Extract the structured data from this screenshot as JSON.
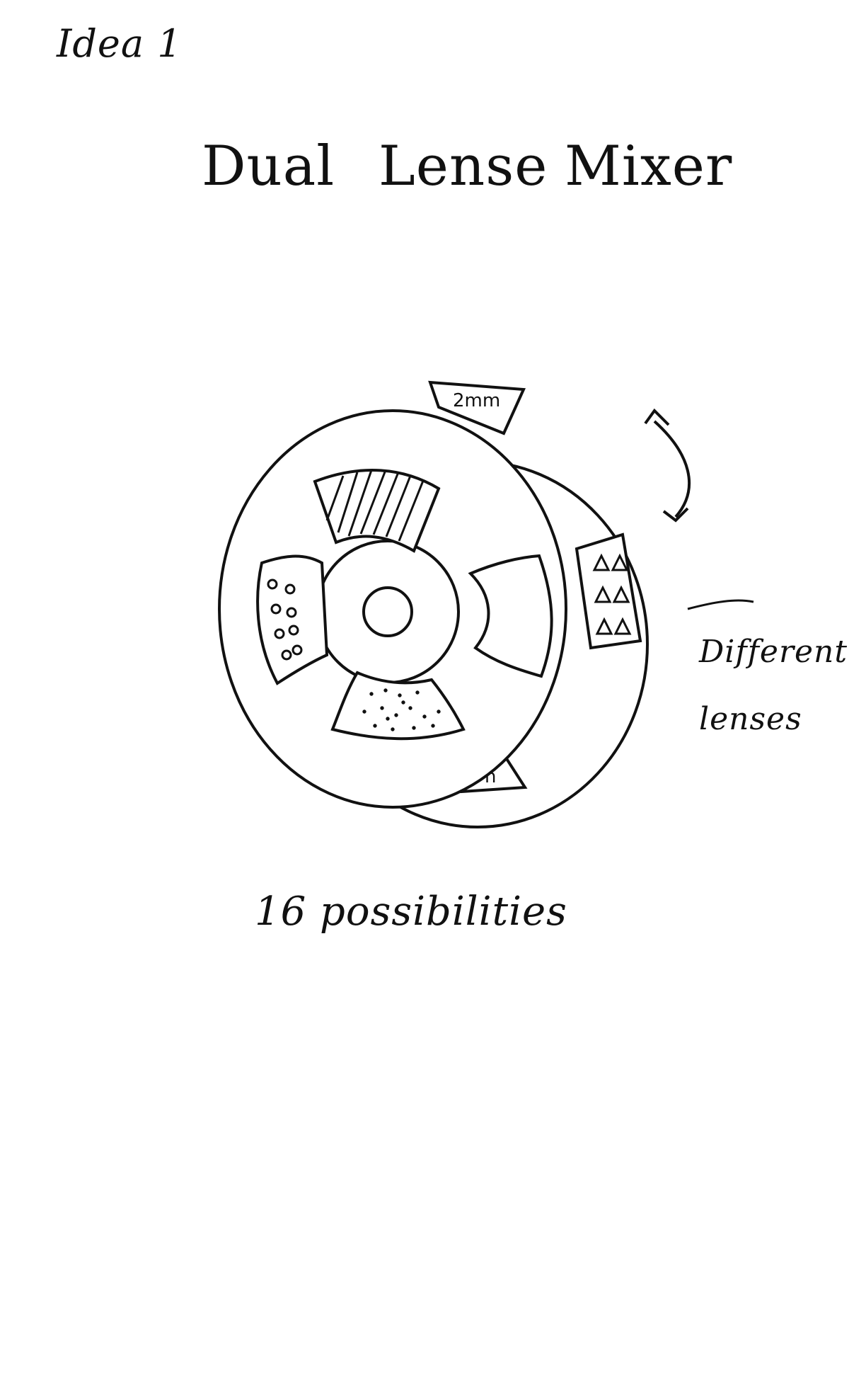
{
  "header": {
    "idea": "Idea 1"
  },
  "title": {
    "word1": "Dual",
    "word2": "Lense",
    "word3": "Mixer"
  },
  "sketch": {
    "back_lens_labels": [
      "2mm",
      "n"
    ],
    "annotation_line1": "Different",
    "annotation_line2": "lenses",
    "rotation_icon": "curved-double-arrow-icon"
  },
  "caption": "16 possibilities"
}
